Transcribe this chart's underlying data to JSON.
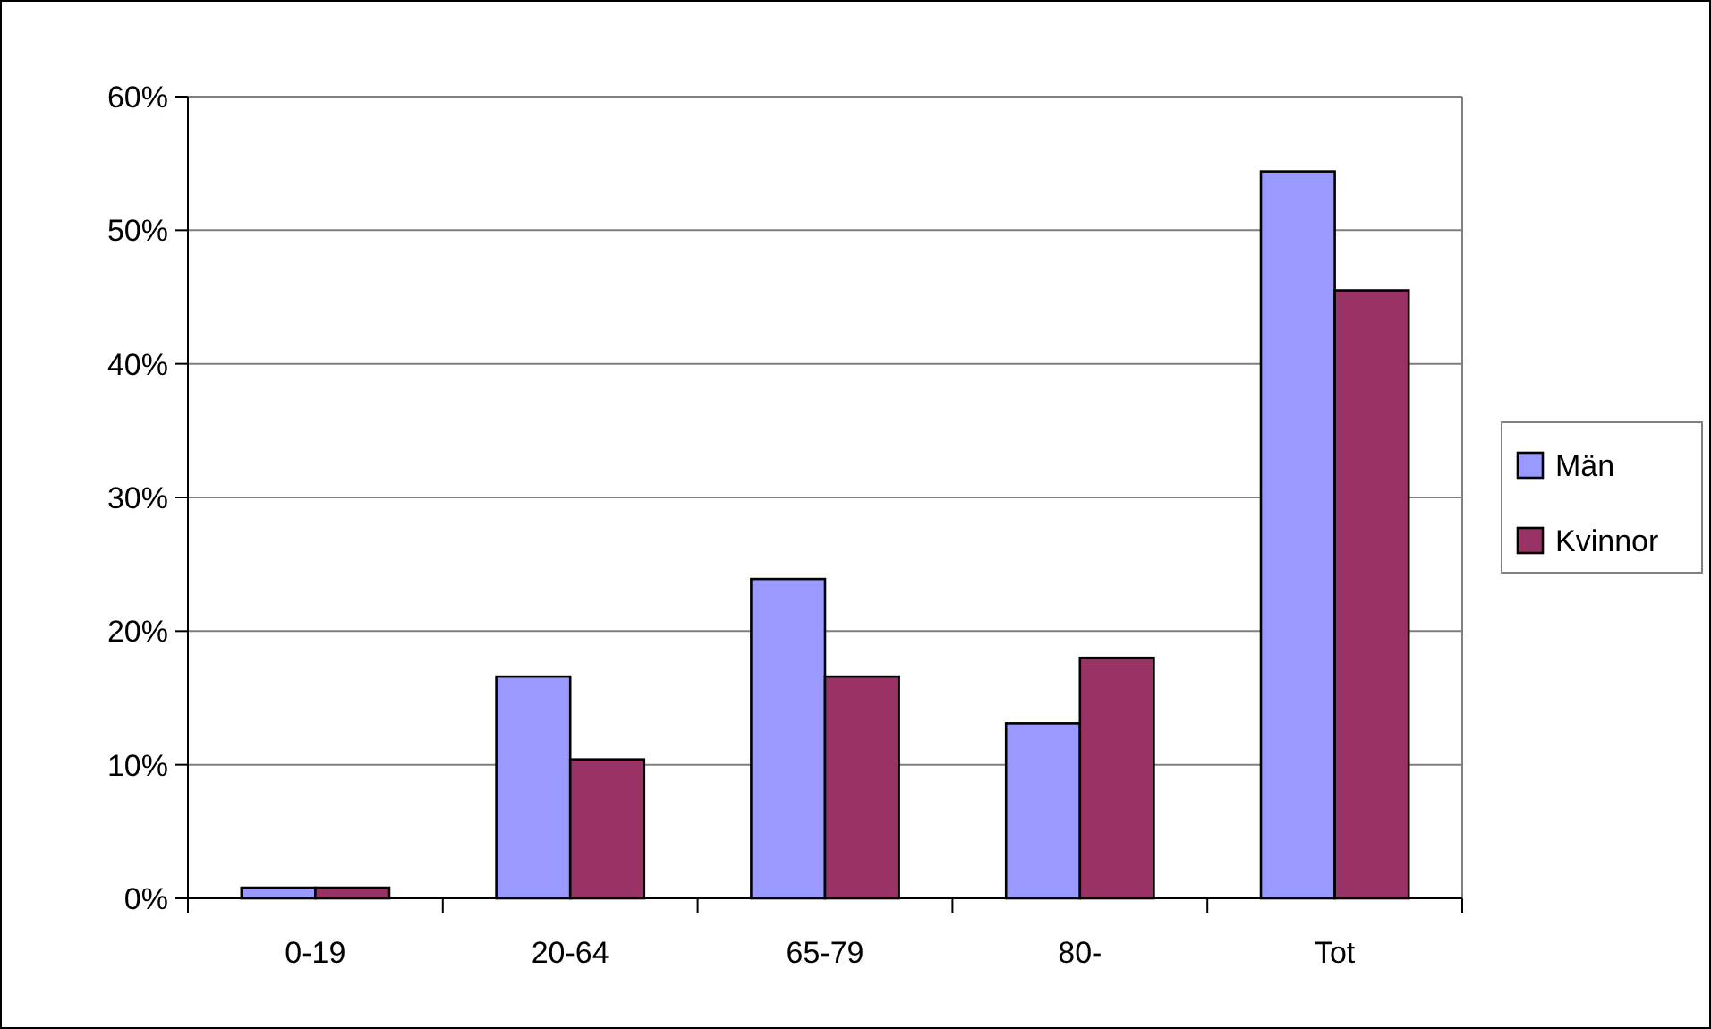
{
  "chart_data": {
    "type": "bar",
    "categories": [
      "0-19",
      "20-64",
      "65-79",
      "80-",
      "Tot"
    ],
    "series": [
      {
        "name": "Män",
        "color": "#9999ff",
        "values": [
          0.8,
          16.6,
          23.9,
          13.1,
          54.4
        ]
      },
      {
        "name": "Kvinnor",
        "color": "#993366",
        "values": [
          0.8,
          10.4,
          16.6,
          18.0,
          45.5
        ]
      }
    ],
    "ylim": [
      0,
      60
    ],
    "yticks": [
      {
        "value": 0,
        "label": "0%"
      },
      {
        "value": 10,
        "label": "10%"
      },
      {
        "value": 20,
        "label": "20%"
      },
      {
        "value": 30,
        "label": "30%"
      },
      {
        "value": 40,
        "label": "40%"
      },
      {
        "value": 50,
        "label": "50%"
      },
      {
        "value": 60,
        "label": "60%"
      }
    ],
    "grid": "y",
    "legend": "right"
  }
}
